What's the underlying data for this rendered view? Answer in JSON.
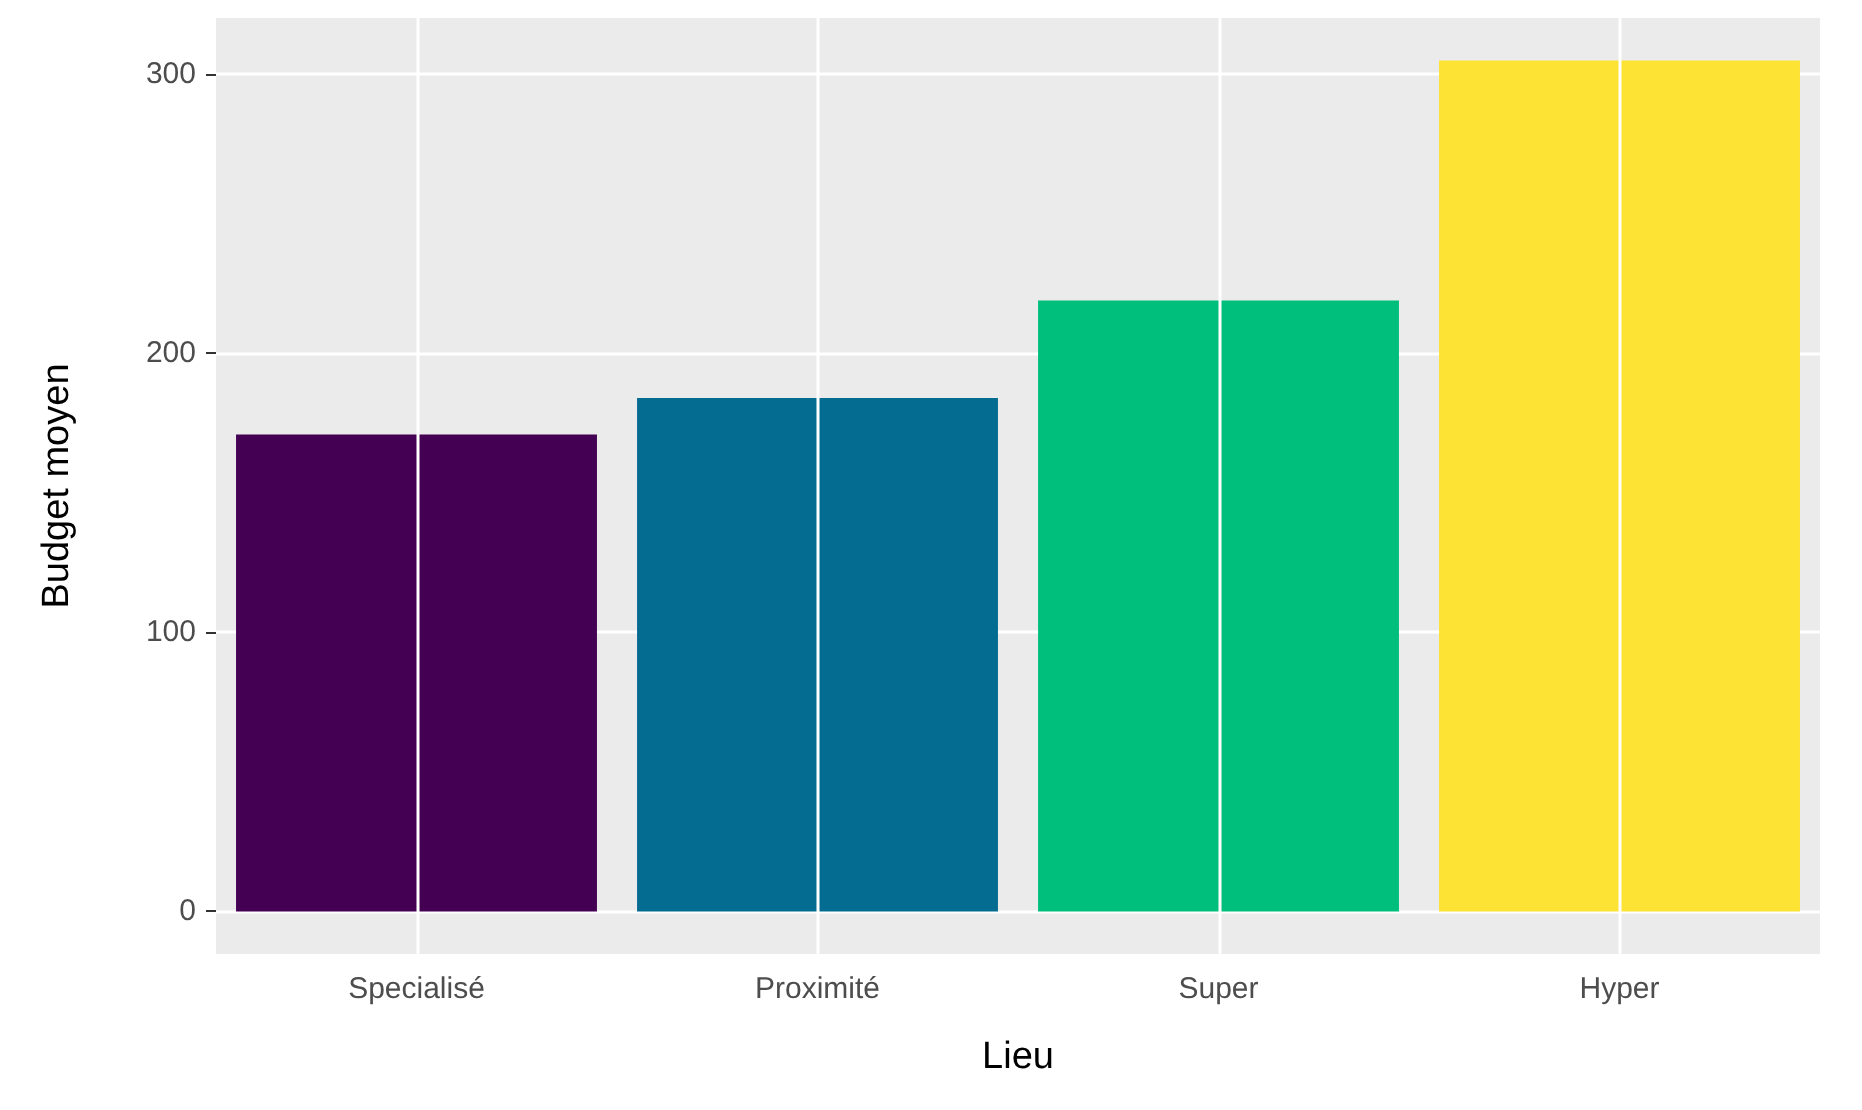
{
  "chart_data": {
    "type": "bar",
    "xlabel": "Lieu",
    "ylabel": "Budget moyen",
    "categories": [
      "Specialisé",
      "Proximité",
      "Super",
      "Hyper"
    ],
    "values": [
      171,
      184,
      219,
      305
    ],
    "colors": [
      "#440154",
      "#046c91",
      "#00bf7d",
      "#fde333"
    ],
    "ylim": [
      -15.25,
      320.25
    ],
    "yticks": [
      0,
      100,
      200,
      300
    ],
    "grid": true
  }
}
